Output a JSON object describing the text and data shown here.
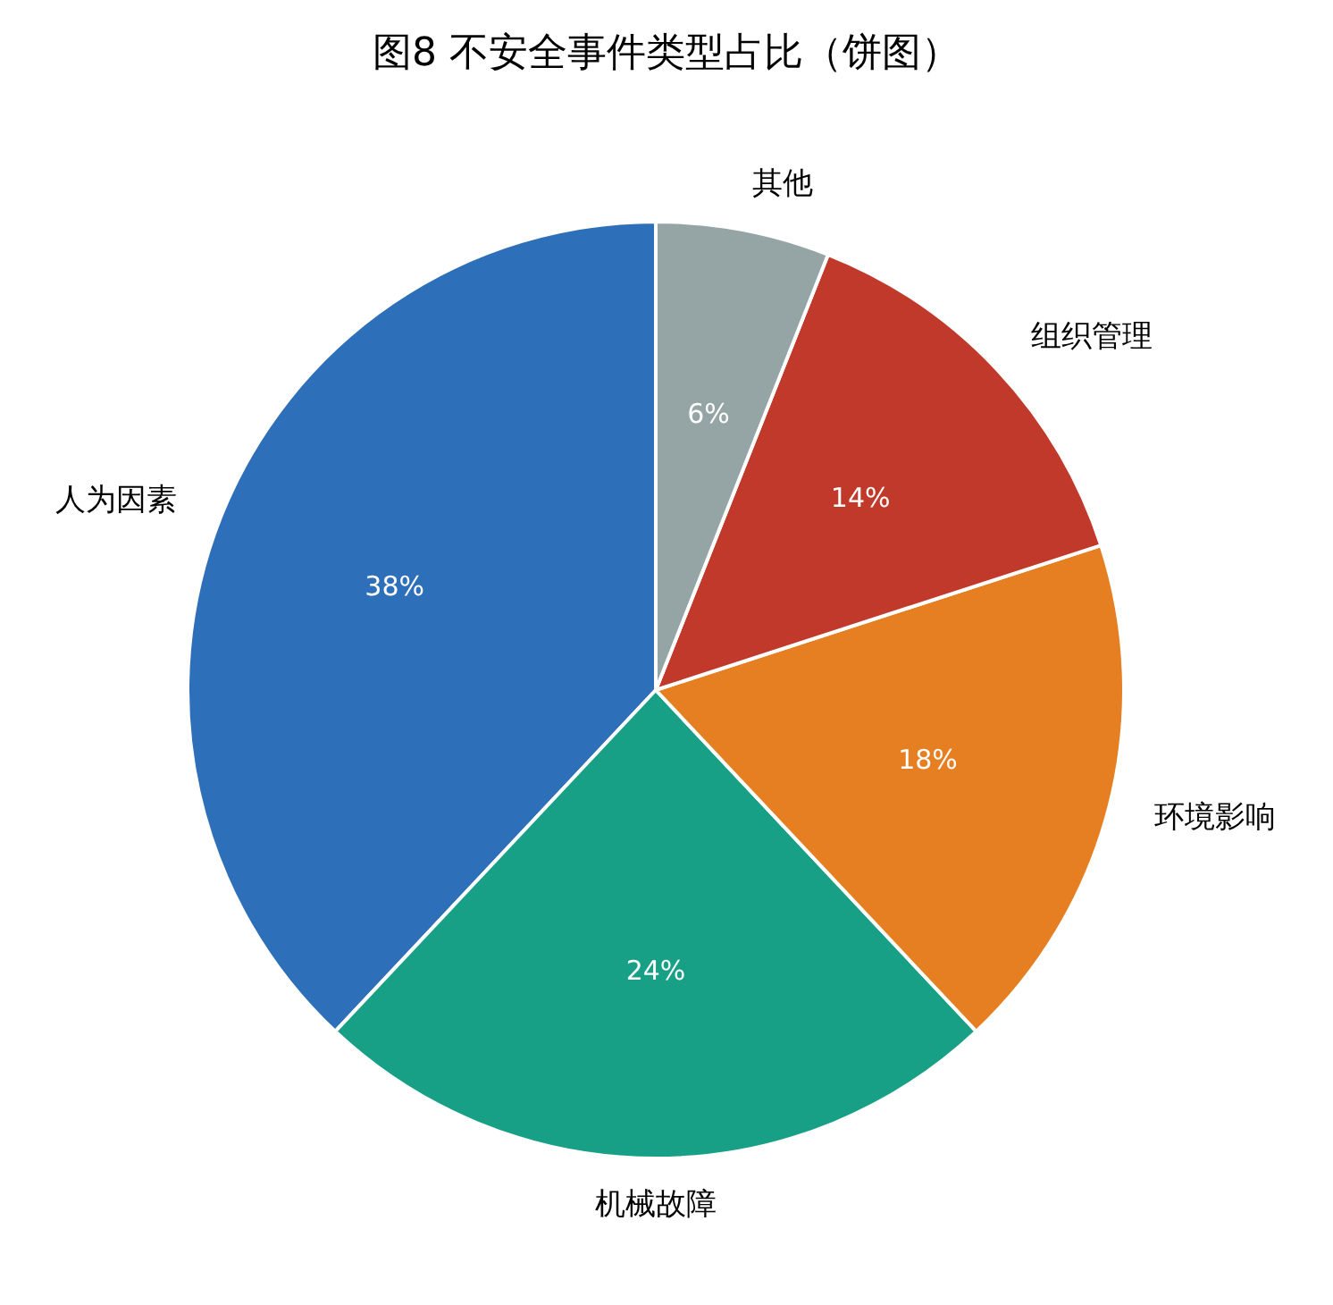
{
  "chart_data": {
    "type": "pie",
    "title": "图8 不安全事件类型占比（饼图）",
    "categories": [
      "人为因素",
      "机械故障",
      "环境影响",
      "组织管理",
      "其他"
    ],
    "values": [
      38,
      24,
      18,
      14,
      6
    ],
    "value_labels": [
      "38%",
      "24%",
      "18%",
      "14%",
      "6%"
    ],
    "colors": [
      "#2e6fba",
      "#17a085",
      "#e67e22",
      "#c0392b",
      "#95a5a6"
    ],
    "legend": false
  }
}
